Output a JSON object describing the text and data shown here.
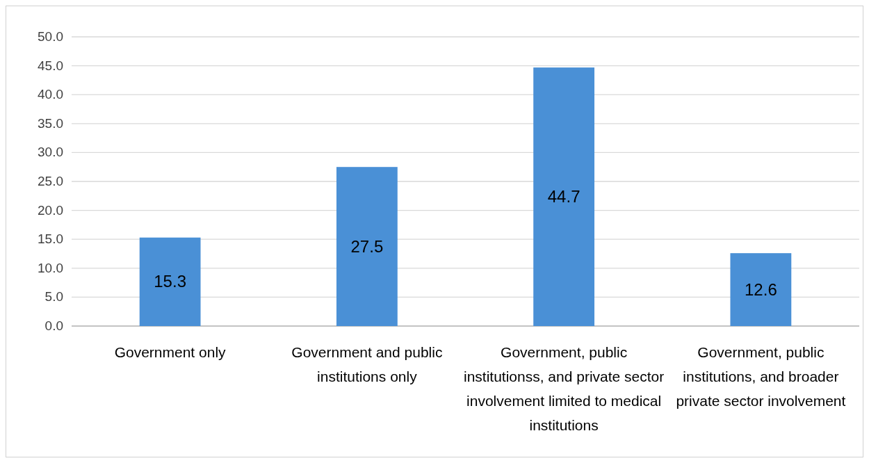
{
  "chart_data": {
    "type": "bar",
    "categories": [
      "Government only",
      "Government and public institutions only",
      "Government, public institutionss, and private sector involvement limited to medical institutions",
      "Government, public institutions, and broader private sector involvement"
    ],
    "values": [
      15.3,
      27.5,
      44.7,
      12.6
    ],
    "color": "#4a90d6",
    "ylim": [
      0,
      50
    ],
    "yticks": [
      {
        "value": 0,
        "label": "0.0"
      },
      {
        "value": 5,
        "label": "5.0"
      },
      {
        "value": 10,
        "label": "10.0"
      },
      {
        "value": 15,
        "label": "15.0"
      },
      {
        "value": 20,
        "label": "20.0"
      },
      {
        "value": 25,
        "label": "25.0"
      },
      {
        "value": 30,
        "label": "30.0"
      },
      {
        "value": 35,
        "label": "35.0"
      },
      {
        "value": 40,
        "label": "40.0"
      },
      {
        "value": 45,
        "label": "45.0"
      },
      {
        "value": 50,
        "label": "50.0"
      }
    ],
    "grid": "y",
    "data_labels": true
  }
}
